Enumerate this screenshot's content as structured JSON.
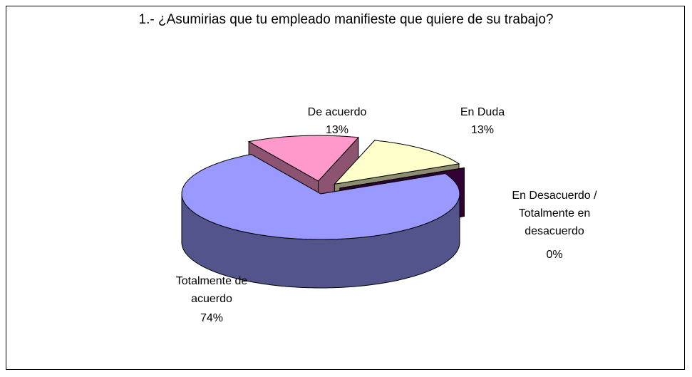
{
  "chart_data": {
    "type": "pie",
    "title": "1.- ¿Asumirias que tu empleado manifieste que quiere de su trabajo?",
    "categories": [
      "De acuerdo",
      "En Duda",
      "En Desacuerdo / Totalmente en desacuerdo",
      "Totalmente de acuerdo"
    ],
    "values": [
      13,
      13,
      0,
      74
    ],
    "value_labels": [
      "13%",
      "13%",
      "0%",
      "74%"
    ],
    "colors": [
      "#ff99cc",
      "#ffffcc",
      "#330033",
      "#9999ff"
    ]
  }
}
